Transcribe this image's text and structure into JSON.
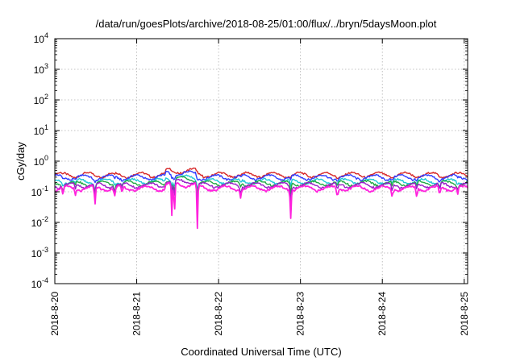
{
  "chart_data": {
    "type": "line",
    "title": "/data/run/goesPlots/archive/2018-08-25/01:00/flux/../bryn/5daysMoon.plot",
    "xlabel": "Coordinated Universal Time (UTC)",
    "ylabel": "cGy/day",
    "y_scale": "log",
    "ylim": [
      0.0001,
      10000
    ],
    "y_ticks": [
      {
        "base": "10",
        "exp": "-4"
      },
      {
        "base": "10",
        "exp": "-3"
      },
      {
        "base": "10",
        "exp": "-2"
      },
      {
        "base": "10",
        "exp": "-1"
      },
      {
        "base": "10",
        "exp": "0"
      },
      {
        "base": "10",
        "exp": "1"
      },
      {
        "base": "10",
        "exp": "2"
      },
      {
        "base": "10",
        "exp": "3"
      },
      {
        "base": "10",
        "exp": "4"
      }
    ],
    "x_range": [
      "2018-08-20T00:00",
      "2018-08-25T01:00"
    ],
    "x_tick_labels": [
      "2018-8-20",
      "2018-8-21",
      "2018-8-22",
      "2018-8-23",
      "2018-8-24",
      "2018-8-25"
    ],
    "grid": true,
    "legend": "none",
    "series": [
      {
        "color": "#d62728",
        "baseline": 0.36
      },
      {
        "color": "#2f3cff",
        "baseline": 0.3
      },
      {
        "color": "#20c8d8",
        "baseline": 0.22
      },
      {
        "color": "#22aa44",
        "baseline": 0.19
      },
      {
        "color": "#9a1ec8",
        "baseline": 0.165
      },
      {
        "color": "#ff22dd",
        "baseline": 0.13
      }
    ],
    "dips": [
      {
        "day": 0.1,
        "value": 0.07
      },
      {
        "day": 0.25,
        "value": 0.08
      },
      {
        "day": 0.49,
        "value": 0.03
      },
      {
        "day": 0.73,
        "value": 0.07
      },
      {
        "day": 0.82,
        "value": 0.08
      },
      {
        "day": 1.43,
        "value": 0.009
      },
      {
        "day": 1.46,
        "value": 0.0015
      },
      {
        "day": 1.74,
        "value": 0.004
      },
      {
        "day": 2.27,
        "value": 0.08
      },
      {
        "day": 2.88,
        "value": 0.016
      },
      {
        "day": 3.45,
        "value": 0.07
      },
      {
        "day": 4.12,
        "value": 0.07
      },
      {
        "day": 4.42,
        "value": 0.07
      },
      {
        "day": 4.7,
        "value": 0.07
      },
      {
        "day": 4.92,
        "value": 0.08
      }
    ]
  }
}
